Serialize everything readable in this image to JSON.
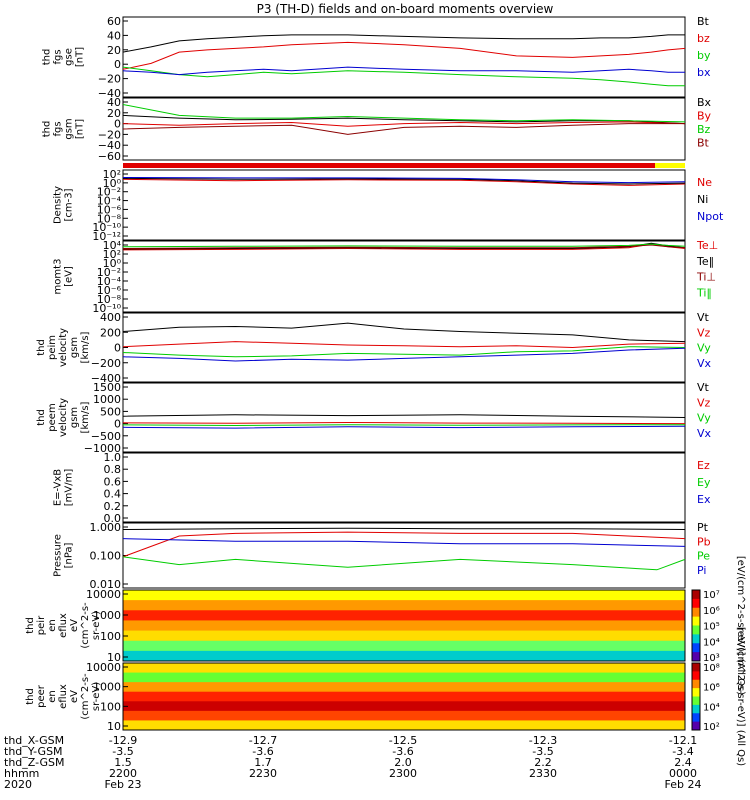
{
  "title": "P3 (TH-D) fields and on-board moments overview",
  "colors": {
    "black": "#000000",
    "red": "#e00000",
    "green": "#00cc00",
    "blue": "#0000d0",
    "darkred": "#8b0000",
    "yellow": "#ffff00"
  },
  "chart_data": [
    {
      "type": "line",
      "id": "fgs_gse",
      "ylabel": [
        "thd",
        "fgs",
        "gse",
        "[nT]"
      ],
      "yticks": [
        "60",
        "40",
        "20",
        "0",
        "−20",
        "−40"
      ],
      "ylim": [
        -45,
        62
      ],
      "series": [
        {
          "name": "Bt",
          "color": "black",
          "x": [
            0,
            5,
            10,
            15,
            20,
            25,
            30,
            40,
            50,
            60,
            70,
            80,
            85,
            90,
            94,
            97,
            100
          ],
          "y": [
            15,
            22,
            30,
            33,
            35,
            37,
            38,
            38,
            36,
            34,
            33,
            33,
            34,
            34,
            36,
            38,
            38
          ]
        },
        {
          "name": "bz",
          "color": "red",
          "x": [
            0,
            5,
            10,
            15,
            20,
            25,
            30,
            40,
            50,
            60,
            70,
            80,
            85,
            90,
            94,
            97,
            100
          ],
          "y": [
            -8,
            0,
            15,
            18,
            20,
            22,
            25,
            28,
            25,
            20,
            10,
            8,
            10,
            12,
            15,
            18,
            20
          ]
        },
        {
          "name": "by",
          "color": "green",
          "x": [
            0,
            5,
            10,
            15,
            20,
            25,
            30,
            40,
            50,
            60,
            70,
            80,
            85,
            90,
            94,
            97,
            100
          ],
          "y": [
            -5,
            -10,
            -15,
            -18,
            -15,
            -12,
            -14,
            -10,
            -12,
            -15,
            -18,
            -20,
            -22,
            -25,
            -28,
            -30,
            -30
          ]
        },
        {
          "name": "bx",
          "color": "blue",
          "x": [
            0,
            5,
            10,
            15,
            20,
            25,
            30,
            40,
            50,
            60,
            70,
            80,
            85,
            90,
            94,
            97,
            100
          ],
          "y": [
            -10,
            -12,
            -15,
            -12,
            -10,
            -8,
            -10,
            -5,
            -8,
            -10,
            -10,
            -12,
            -10,
            -8,
            -10,
            -12,
            -12
          ]
        }
      ]
    },
    {
      "type": "line",
      "id": "fgs_gsm",
      "ylabel": [
        "thd",
        "fgs",
        "gsm",
        "[nT]"
      ],
      "yticks": [
        "40",
        "20",
        "0",
        "−20",
        "−40",
        "−60"
      ],
      "ylim": [
        -72,
        42
      ],
      "series": [
        {
          "name": "Bx",
          "color": "black",
          "x": [
            0,
            10,
            20,
            30,
            40,
            50,
            60,
            70,
            80,
            90,
            100
          ],
          "y": [
            10,
            5,
            2,
            3,
            5,
            2,
            0,
            -2,
            0,
            0,
            -5
          ]
        },
        {
          "name": "By",
          "color": "red",
          "x": [
            0,
            10,
            20,
            30,
            40,
            50,
            60,
            70,
            80,
            90,
            100
          ],
          "y": [
            -5,
            -8,
            -5,
            -3,
            -10,
            -5,
            -3,
            -5,
            -3,
            -2,
            -5
          ]
        },
        {
          "name": "Bz",
          "color": "green",
          "x": [
            0,
            10,
            20,
            30,
            40,
            50,
            60,
            70,
            80,
            90,
            100
          ],
          "y": [
            30,
            10,
            5,
            5,
            8,
            5,
            2,
            0,
            2,
            0,
            -2
          ]
        },
        {
          "name": "Bt",
          "color": "darkred",
          "x": [
            0,
            10,
            20,
            30,
            40,
            50,
            60,
            70,
            80,
            90,
            100
          ],
          "y": [
            -15,
            -12,
            -10,
            -8,
            -25,
            -12,
            -10,
            -12,
            -8,
            -5,
            -5
          ]
        }
      ]
    },
    {
      "type": "line",
      "id": "density",
      "log": true,
      "ylabel": [
        "Density",
        "[cm-3]"
      ],
      "yticks": [
        "10²",
        "10⁰",
        "10⁻²",
        "10⁻⁴",
        "10⁻⁶",
        "10⁻⁸",
        "10⁻¹⁰",
        "10⁻¹²"
      ],
      "ylim": [
        -12.5,
        2.5
      ],
      "series": [
        {
          "name": "Ne",
          "color": "red",
          "x": [
            0,
            20,
            40,
            60,
            70,
            80,
            90,
            100
          ],
          "y": [
            0.5,
            0.2,
            0.4,
            0.3,
            0,
            -0.5,
            -0.8,
            -0.5
          ]
        },
        {
          "name": "Ni",
          "color": "black",
          "x": [
            0,
            20,
            40,
            60,
            70,
            80,
            90,
            100
          ],
          "y": [
            0.7,
            0.5,
            0.6,
            0.5,
            0.2,
            -0.3,
            -0.5,
            -0.3
          ]
        },
        {
          "name": "Npot",
          "color": "blue",
          "x": [
            0,
            20,
            40,
            60,
            70,
            80,
            90,
            100
          ],
          "y": [
            0.9,
            0.8,
            0.8,
            0.7,
            0.4,
            0,
            -0.2,
            0
          ]
        }
      ]
    },
    {
      "type": "line",
      "id": "moms",
      "log": true,
      "ylabel": [
        "momt3",
        "[eV]"
      ],
      "yticks": [
        "10⁴",
        "10²",
        "10⁰",
        "10⁻²",
        "10⁻⁴",
        "10⁻⁶",
        "10⁻⁸",
        "10⁻¹⁰"
      ],
      "ylim": [
        -11.5,
        4.5
      ],
      "series": [
        {
          "name": "Te⊥",
          "color": "red",
          "x": [
            0,
            20,
            40,
            60,
            80,
            90,
            94,
            97,
            100
          ],
          "y": [
            2.5,
            2.6,
            2.8,
            2.6,
            2.6,
            3,
            3.8,
            3.2,
            2.8
          ]
        },
        {
          "name": "Te‖",
          "color": "black",
          "x": [
            0,
            20,
            40,
            60,
            80,
            90,
            94,
            97,
            100
          ],
          "y": [
            2.7,
            2.8,
            3,
            2.8,
            2.8,
            3.2,
            4,
            3.4,
            3
          ]
        },
        {
          "name": "Ti⊥",
          "color": "darkred",
          "x": [
            0,
            20,
            40,
            60,
            80,
            90,
            94,
            97,
            100
          ],
          "y": [
            2.8,
            3,
            3.1,
            3,
            3,
            3.3,
            3.6,
            3.2,
            3
          ]
        },
        {
          "name": "Ti‖",
          "color": "green",
          "x": [
            0,
            20,
            40,
            60,
            80,
            90,
            94,
            97,
            100
          ],
          "y": [
            3.2,
            3.3,
            3.4,
            3.3,
            3.3,
            3.5,
            3.8,
            3.5,
            3.3
          ]
        }
      ]
    },
    {
      "type": "line",
      "id": "peim",
      "ylabel": [
        "thd",
        "peim",
        "velocity",
        "gsm",
        "[km/s]"
      ],
      "yticks": [
        "400",
        "200",
        "0",
        "−200",
        "−400"
      ],
      "ylim": [
        -400,
        420
      ],
      "series": [
        {
          "name": "Vt",
          "color": "black",
          "x": [
            0,
            10,
            20,
            30,
            40,
            50,
            60,
            70,
            80,
            90,
            100
          ],
          "y": [
            200,
            250,
            260,
            240,
            300,
            230,
            200,
            180,
            160,
            100,
            80
          ]
        },
        {
          "name": "Vz",
          "color": "red",
          "x": [
            0,
            10,
            20,
            30,
            40,
            50,
            60,
            70,
            80,
            90,
            100
          ],
          "y": [
            20,
            50,
            80,
            60,
            40,
            30,
            20,
            30,
            10,
            50,
            60
          ]
        },
        {
          "name": "Vy",
          "color": "green",
          "x": [
            0,
            10,
            20,
            30,
            40,
            50,
            60,
            70,
            80,
            90,
            100
          ],
          "y": [
            -50,
            -80,
            -100,
            -90,
            -60,
            -70,
            -80,
            -40,
            -30,
            20,
            10
          ]
        },
        {
          "name": "Vx",
          "color": "blue",
          "x": [
            0,
            10,
            20,
            30,
            40,
            50,
            60,
            70,
            80,
            90,
            100
          ],
          "y": [
            -100,
            -120,
            -150,
            -130,
            -140,
            -120,
            -100,
            -80,
            -60,
            -20,
            0
          ]
        }
      ]
    },
    {
      "type": "line",
      "id": "peem",
      "ylabel": [
        "thd",
        "peem",
        "velocity",
        "gsm",
        "[km/s]"
      ],
      "yticks": [
        "1500",
        "1000",
        "500",
        "0",
        "−500",
        "−1000"
      ],
      "ylim": [
        -1050,
        1550
      ],
      "series": [
        {
          "name": "Vt",
          "color": "black",
          "x": [
            0,
            20,
            40,
            60,
            80,
            100
          ],
          "y": [
            300,
            350,
            320,
            350,
            300,
            250
          ]
        },
        {
          "name": "Vz",
          "color": "red",
          "x": [
            0,
            20,
            40,
            60,
            80,
            100
          ],
          "y": [
            50,
            30,
            60,
            40,
            30,
            20
          ]
        },
        {
          "name": "Vy",
          "color": "green",
          "x": [
            0,
            20,
            40,
            60,
            80,
            100
          ],
          "y": [
            -30,
            -50,
            -20,
            -40,
            -30,
            -20
          ]
        },
        {
          "name": "Vx",
          "color": "blue",
          "x": [
            0,
            20,
            40,
            60,
            80,
            100
          ],
          "y": [
            -120,
            -150,
            -100,
            -130,
            -100,
            -80
          ]
        }
      ]
    },
    {
      "type": "line",
      "id": "efield",
      "ylabel": [
        "E=-VxB",
        "[mV/m]"
      ],
      "yticks": [
        "1.0",
        "0.8",
        "0.6",
        "0.4",
        "0.2",
        "0.0"
      ],
      "ylim": [
        0,
        1
      ],
      "series": [
        {
          "name": "Ez",
          "color": "red",
          "x": [],
          "y": []
        },
        {
          "name": "Ey",
          "color": "green",
          "x": [],
          "y": []
        },
        {
          "name": "Ex",
          "color": "blue",
          "x": [],
          "y": []
        }
      ]
    },
    {
      "type": "line",
      "id": "pressure",
      "log": true,
      "ylabel": [
        "Pressure",
        "[nPa]"
      ],
      "yticks": [
        "1.000",
        "0.100",
        "0.010"
      ],
      "ylim": [
        -2.4,
        0.1
      ],
      "series": [
        {
          "name": "Pt",
          "color": "black",
          "x": [
            0,
            20,
            40,
            60,
            80,
            100
          ],
          "y": [
            -0.15,
            -0.12,
            -0.1,
            -0.12,
            -0.12,
            -0.15
          ]
        },
        {
          "name": "Pb",
          "color": "red",
          "x": [
            0,
            5,
            10,
            20,
            40,
            60,
            80,
            100
          ],
          "y": [
            -1.2,
            -0.8,
            -0.4,
            -0.3,
            -0.25,
            -0.3,
            -0.3,
            -0.5
          ]
        },
        {
          "name": "Pe",
          "color": "green",
          "x": [
            0,
            10,
            20,
            40,
            60,
            80,
            95,
            100
          ],
          "y": [
            -1.2,
            -1.5,
            -1.3,
            -1.6,
            -1.3,
            -1.5,
            -1.7,
            -1.3
          ]
        },
        {
          "name": "Pi",
          "color": "blue",
          "x": [
            0,
            20,
            40,
            60,
            80,
            100
          ],
          "y": [
            -0.5,
            -0.6,
            -0.6,
            -0.7,
            -0.7,
            -0.8
          ]
        }
      ]
    },
    {
      "type": "heatmap",
      "id": "peir_spec",
      "ylabel": [
        "thd",
        "peir",
        "en",
        "eflux",
        "eV",
        "(cm^2-s-",
        "sr-eV)"
      ],
      "yticks": [
        "10000",
        "1000",
        "100",
        "10"
      ],
      "colorbar_label": "[eV/(cm^2-s-sr-eV)] (All Qs)",
      "colorbar_ticks": [
        "10⁷",
        "10⁶",
        "10⁵",
        "10⁴",
        "10³"
      ]
    },
    {
      "type": "heatmap",
      "id": "peer_spec",
      "ylabel": [
        "thd",
        "peer",
        "en",
        "eflux",
        "eV",
        "(cm^2-s-",
        "sr-eV)"
      ],
      "yticks": [
        "10000",
        "1000",
        "100",
        "10"
      ],
      "colorbar_label": "[eV/(cm^2-s-sr-eV)] (All Qs)",
      "colorbar_ticks": [
        "10⁸",
        "10⁶",
        "10⁴",
        "10²"
      ]
    }
  ],
  "footer": {
    "rows": [
      {
        "label": "thd_X-GSM",
        "values": [
          "-12.9",
          "-12.7",
          "-12.5",
          "-12.3",
          "-12.1"
        ]
      },
      {
        "label": "thd_Y-GSM",
        "values": [
          "-3.5",
          "-3.6",
          "-3.6",
          "-3.5",
          "-3.4"
        ]
      },
      {
        "label": "thd_Z-GSM",
        "values": [
          "1.5",
          "1.7",
          "2.0",
          "2.2",
          "2.4"
        ]
      },
      {
        "label": "hhmm",
        "values": [
          "2200",
          "2230",
          "2300",
          "2330",
          "0000"
        ]
      },
      {
        "label": "2020",
        "values": [
          "Feb 23",
          "",
          "",
          "",
          "Feb 24"
        ]
      }
    ]
  }
}
